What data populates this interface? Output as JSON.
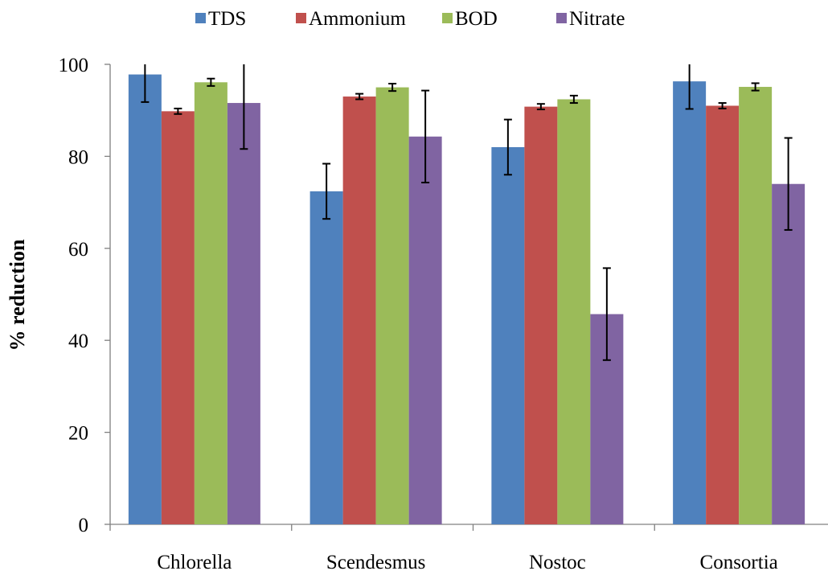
{
  "chart_data": {
    "type": "bar",
    "title": "",
    "xlabel": "",
    "ylabel": "% reduction",
    "ylim": [
      0,
      100
    ],
    "yticks": [
      0,
      20,
      40,
      60,
      80,
      100
    ],
    "grid": false,
    "legend_position": "top",
    "categories": [
      "Chlorella",
      "Scendesmus",
      "Nostoc",
      "Consortia"
    ],
    "series": [
      {
        "name": "TDS",
        "color": "#4f81bd",
        "values": [
          97.8,
          72.4,
          82.0,
          96.3
        ],
        "errors": [
          6.0,
          6.0,
          6.0,
          6.0
        ]
      },
      {
        "name": "Ammonium",
        "color": "#c0504d",
        "values": [
          89.8,
          93.0,
          90.8,
          91.0
        ],
        "errors": [
          0.6,
          0.6,
          0.6,
          0.6
        ]
      },
      {
        "name": "BOD",
        "color": "#9bbb59",
        "values": [
          96.1,
          95.0,
          92.4,
          95.1
        ],
        "errors": [
          0.8,
          0.8,
          0.8,
          0.8
        ]
      },
      {
        "name": "Nitrate",
        "color": "#8064a2",
        "values": [
          91.6,
          84.3,
          45.7,
          74.0
        ],
        "errors": [
          10.0,
          10.0,
          10.0,
          10.0
        ]
      }
    ]
  }
}
